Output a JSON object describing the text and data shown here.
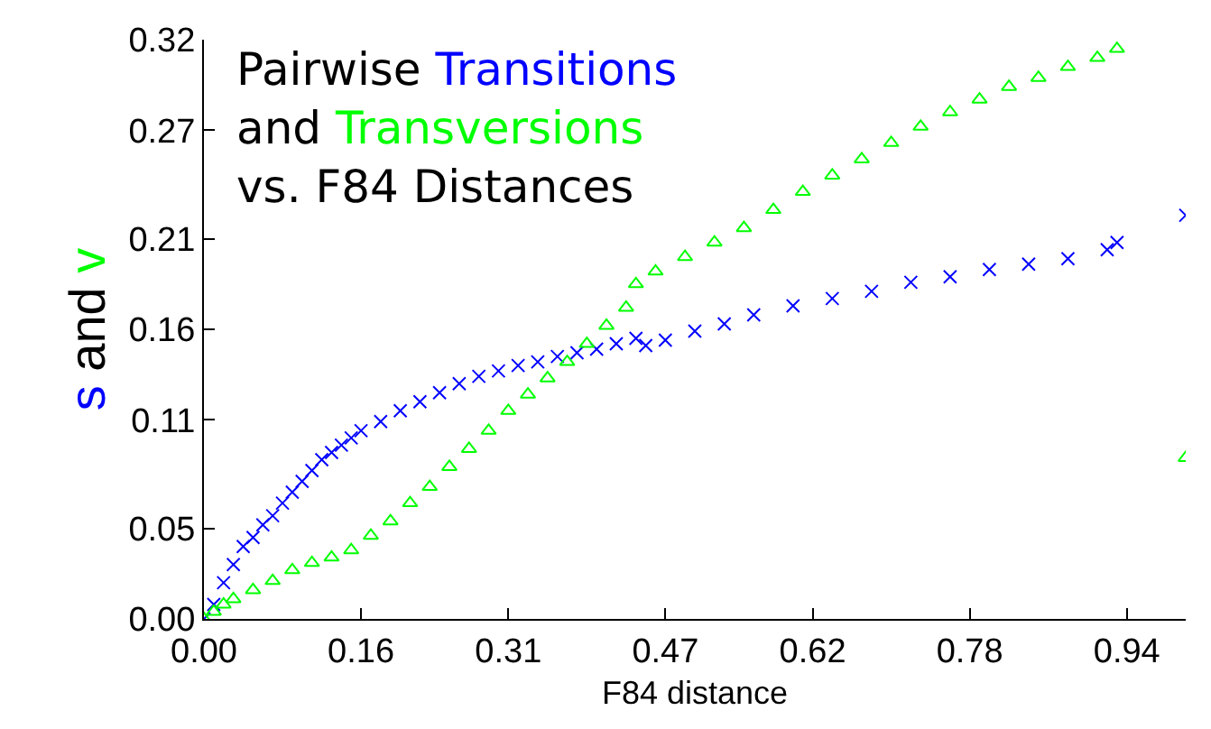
{
  "chart_data": {
    "type": "scatter",
    "title": "Pairwise Transitions and Transversions vs. F84 Distances",
    "xlabel": "F84 distance",
    "ylabel": "s and v",
    "xlim": [
      0,
      1.0
    ],
    "xticks": [
      {
        "value": 0,
        "label": "0.00"
      },
      0.16,
      0.31,
      0.47,
      0.62,
      0.78,
      0.94
    ],
    "ylim": [
      0,
      0.32
    ],
    "yticks": [
      {
        "value": 0,
        "label": "0.00"
      },
      0.05,
      0.11,
      0.16,
      0.21,
      0.27,
      0.32
    ],
    "series": [
      {
        "color": "#0000ff",
        "marker": "cross",
        "x": [
          0.0,
          0.01,
          0.02,
          0.03,
          0.04,
          0.05,
          0.06,
          0.07,
          0.08,
          0.09,
          0.1,
          0.11,
          0.12,
          0.13,
          0.14,
          0.15,
          0.16,
          0.18,
          0.2,
          0.22,
          0.24,
          0.26,
          0.28,
          0.3,
          0.32,
          0.34,
          0.36,
          0.38,
          0.4,
          0.42,
          0.44,
          0.45,
          0.47,
          0.5,
          0.53,
          0.56,
          0.6,
          0.64,
          0.68,
          0.72,
          0.76,
          0.8,
          0.84,
          0.88,
          0.92,
          0.93,
          1.0
        ],
        "values": [
          0.0,
          0.008,
          0.02,
          0.03,
          0.04,
          0.045,
          0.052,
          0.057,
          0.064,
          0.07,
          0.076,
          0.082,
          0.088,
          0.092,
          0.096,
          0.1,
          0.104,
          0.109,
          0.115,
          0.12,
          0.125,
          0.13,
          0.134,
          0.137,
          0.14,
          0.142,
          0.145,
          0.147,
          0.149,
          0.152,
          0.155,
          0.151,
          0.154,
          0.159,
          0.163,
          0.168,
          0.173,
          0.177,
          0.181,
          0.186,
          0.189,
          0.193,
          0.196,
          0.199,
          0.204,
          0.208,
          0.223
        ]
      },
      {
        "color": "#00ff00",
        "marker": "triangle",
        "x": [
          0.0,
          0.01,
          0.02,
          0.03,
          0.05,
          0.07,
          0.09,
          0.11,
          0.13,
          0.15,
          0.17,
          0.19,
          0.21,
          0.23,
          0.25,
          0.27,
          0.29,
          0.31,
          0.33,
          0.35,
          0.37,
          0.39,
          0.41,
          0.43,
          0.44,
          0.46,
          0.49,
          0.52,
          0.55,
          0.58,
          0.61,
          0.64,
          0.67,
          0.7,
          0.73,
          0.76,
          0.79,
          0.82,
          0.85,
          0.88,
          0.91,
          0.93,
          1.0
        ],
        "values": [
          0.0,
          0.004,
          0.008,
          0.011,
          0.016,
          0.021,
          0.027,
          0.031,
          0.034,
          0.038,
          0.046,
          0.054,
          0.064,
          0.073,
          0.084,
          0.094,
          0.104,
          0.115,
          0.124,
          0.133,
          0.142,
          0.152,
          0.162,
          0.172,
          0.185,
          0.192,
          0.2,
          0.208,
          0.216,
          0.226,
          0.236,
          0.245,
          0.254,
          0.263,
          0.272,
          0.28,
          0.287,
          0.294,
          0.299,
          0.305,
          0.31,
          0.315,
          0.089
        ]
      }
    ]
  }
}
